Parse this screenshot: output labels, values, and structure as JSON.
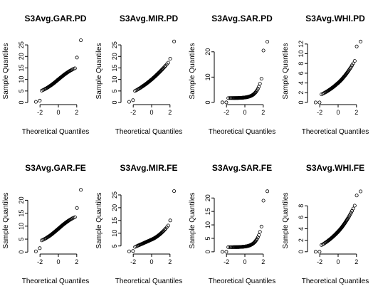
{
  "chart_data": [
    {
      "type": "scatter",
      "title": "S3Avg.GAR.PD",
      "xlabel": "Theoretical Quantiles",
      "ylabel": "Sample Quantiles",
      "xticks": [
        -2,
        0,
        2
      ],
      "yticks": [
        0,
        5,
        10,
        15,
        20,
        25
      ],
      "xlim": [
        -3.1,
        3.1
      ],
      "ylim": [
        -0.3,
        27.5
      ],
      "series": [
        {
          "shape": "sigmoid",
          "ymin": 0.0,
          "ymax": 27.0,
          "mid": 10.0,
          "spread": 5.5,
          "extremes_low": [
            0.3,
            0.8
          ],
          "extremes_high": [
            19.5,
            27.0
          ]
        }
      ]
    },
    {
      "type": "scatter",
      "title": "S3Avg.MIR.PD",
      "xlabel": "Theoretical Quantiles",
      "ylabel": "Sample Quantiles",
      "xticks": [
        -2,
        0,
        2
      ],
      "yticks": [
        0,
        5,
        10,
        15,
        20,
        25
      ],
      "xlim": [
        -3.1,
        3.1
      ],
      "ylim": [
        -0.3,
        27.5
      ],
      "series": [
        {
          "shape": "linear",
          "ymin": 0.0,
          "ymax": 26.5,
          "mid": 10.0,
          "spread": 5.5,
          "extremes_low": [
            0.3,
            1.0
          ],
          "extremes_high": [
            19.0,
            26.5
          ]
        }
      ]
    },
    {
      "type": "scatter",
      "title": "S3Avg.SAR.PD",
      "xlabel": "Theoretical Quantiles",
      "ylabel": "Sample Quantiles",
      "xticks": [
        -2,
        0,
        2
      ],
      "yticks": [
        0,
        10,
        20
      ],
      "xlim": [
        -3.1,
        3.1
      ],
      "ylim": [
        -0.3,
        25.0
      ],
      "series": [
        {
          "shape": "exp",
          "ymin": 0.0,
          "ymax": 24.0,
          "mid": 2.0,
          "spread": 9.0,
          "extremes_low": [
            0.0,
            0.0
          ],
          "extremes_high": [
            20.5,
            24.0
          ]
        }
      ]
    },
    {
      "type": "scatter",
      "title": "S3Avg.WHI.PD",
      "xlabel": "Theoretical Quantiles",
      "ylabel": "Sample Quantiles",
      "xticks": [
        -2,
        0,
        2
      ],
      "yticks": [
        0,
        2,
        4,
        6,
        8,
        10,
        12
      ],
      "xlim": [
        -3.1,
        3.1
      ],
      "ylim": [
        -0.15,
        13.0
      ],
      "series": [
        {
          "shape": "convex",
          "ymin": 0.0,
          "ymax": 12.5,
          "mid": 4.0,
          "spread": 5.0,
          "extremes_low": [
            0.0,
            0.0
          ],
          "extremes_high": [
            11.5,
            12.5
          ]
        }
      ]
    },
    {
      "type": "scatter",
      "title": "S3Avg.GAR.FE",
      "xlabel": "Theoretical Quantiles",
      "ylabel": "Sample Quantiles",
      "xticks": [
        -2,
        0,
        2
      ],
      "yticks": [
        0,
        5,
        10,
        15,
        20
      ],
      "xlim": [
        -3.1,
        3.1
      ],
      "ylim": [
        -0.2,
        24.5
      ],
      "series": [
        {
          "shape": "sigmoid",
          "ymin": 0.0,
          "ymax": 24.0,
          "mid": 9.0,
          "spread": 5.0,
          "extremes_low": [
            0.3,
            1.5
          ],
          "extremes_high": [
            17.0,
            24.0
          ]
        }
      ]
    },
    {
      "type": "scatter",
      "title": "S3Avg.MIR.FE",
      "xlabel": "Theoretical Quantiles",
      "ylabel": "Sample Quantiles",
      "xticks": [
        -2,
        0,
        2
      ],
      "yticks": [
        5,
        10,
        15,
        20,
        25
      ],
      "xlim": [
        -3.1,
        3.1
      ],
      "ylim": [
        2.4,
        27.5
      ],
      "series": [
        {
          "shape": "convex_soft",
          "ymin": 2.9,
          "ymax": 26.5,
          "mid": 7.5,
          "spread": 6.0,
          "extremes_low": [
            2.9,
            3.0
          ],
          "extremes_high": [
            15.0,
            26.5
          ]
        }
      ]
    },
    {
      "type": "scatter",
      "title": "S3Avg.SAR.FE",
      "xlabel": "Theoretical Quantiles",
      "ylabel": "Sample Quantiles",
      "xticks": [
        -2,
        0,
        2
      ],
      "yticks": [
        0,
        5,
        10,
        15,
        20
      ],
      "xlim": [
        -3.1,
        3.1
      ],
      "ylim": [
        -0.3,
        23.5
      ],
      "series": [
        {
          "shape": "exp",
          "ymin": 0.0,
          "ymax": 22.5,
          "mid": 2.0,
          "spread": 8.5,
          "extremes_low": [
            0.0,
            0.0
          ],
          "extremes_high": [
            19.0,
            22.5
          ]
        }
      ]
    },
    {
      "type": "scatter",
      "title": "S3Avg.WHI.FE",
      "xlabel": "Theoretical Quantiles",
      "ylabel": "Sample Quantiles",
      "xticks": [
        -2,
        0,
        2
      ],
      "yticks": [
        0,
        2,
        4,
        6,
        8
      ],
      "xlim": [
        -3.1,
        3.1
      ],
      "ylim": [
        -0.15,
        11.0
      ],
      "series": [
        {
          "shape": "convex",
          "ymin": 0.0,
          "ymax": 10.5,
          "mid": 3.5,
          "spread": 4.5,
          "extremes_low": [
            0.0,
            0.0
          ],
          "extremes_high": [
            9.8,
            10.5
          ]
        }
      ]
    }
  ]
}
